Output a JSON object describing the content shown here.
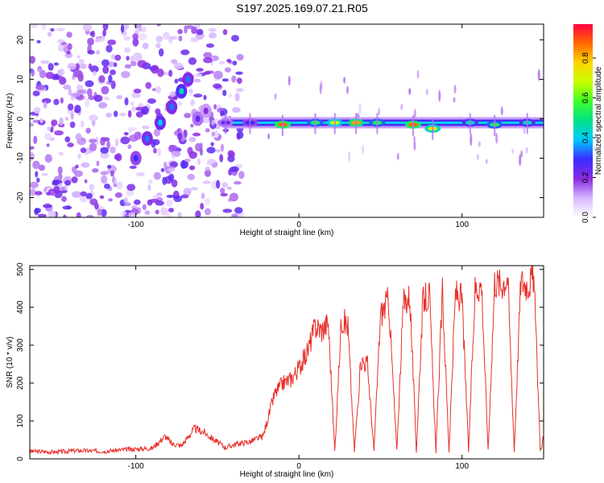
{
  "title": "S197.2025.169.07.21.R05",
  "colors": {
    "snr_line": "#e8302a",
    "axes": "#000000",
    "colorbar": [
      "#ffffff",
      "#d8b8ff",
      "#8a2be2",
      "#3b2bff",
      "#00c8ff",
      "#00e28a",
      "#3cff2a",
      "#c8ff00",
      "#ffd400",
      "#ff6a00",
      "#ff0040"
    ]
  },
  "chart_data": [
    {
      "type": "heatmap",
      "xlabel": "Height of straight line (km)",
      "ylabel": "Frequency (Hz)",
      "xlim": [
        -165,
        150
      ],
      "ylim": [
        -25,
        24
      ],
      "x_ticks": [
        -100,
        0,
        100
      ],
      "y_ticks": [
        -20,
        -10,
        0,
        10,
        20
      ],
      "colorbar": {
        "label": "Normalized spectral amplitude",
        "range": [
          0,
          0.97
        ],
        "ticks": [
          "0.0",
          "0.2",
          "0.4",
          "0.6",
          "0.8"
        ]
      },
      "ridge": [
        {
          "x": -45,
          "freq": -1,
          "amp": 0.25
        },
        {
          "x": -30,
          "freq": -1,
          "amp": 0.3
        },
        {
          "x": -10,
          "freq": -1.5,
          "amp": 0.9
        },
        {
          "x": 10,
          "freq": -1,
          "amp": 0.55
        },
        {
          "x": 22,
          "freq": -1,
          "amp": 0.7
        },
        {
          "x": 35,
          "freq": -1,
          "amp": 0.85
        },
        {
          "x": 48,
          "freq": -1,
          "amp": 0.55
        },
        {
          "x": 70,
          "freq": -1.5,
          "amp": 0.9
        },
        {
          "x": 82,
          "freq": -2.5,
          "amp": 0.75
        },
        {
          "x": 105,
          "freq": -1,
          "amp": 0.45
        },
        {
          "x": 120,
          "freq": -1.5,
          "amp": 0.55
        },
        {
          "x": 140,
          "freq": -1,
          "amp": 0.45
        }
      ],
      "arc": [
        {
          "x": -100,
          "freq": -10,
          "amp": 0.3
        },
        {
          "x": -93,
          "freq": -5,
          "amp": 0.35
        },
        {
          "x": -85,
          "freq": -1,
          "amp": 0.4
        },
        {
          "x": -78,
          "freq": 3,
          "amp": 0.35
        },
        {
          "x": -72,
          "freq": 7,
          "amp": 0.45
        },
        {
          "x": -68,
          "freq": 10,
          "amp": 0.35
        },
        {
          "x": -62,
          "freq": 0,
          "amp": 0.25
        },
        {
          "x": -57,
          "freq": 2,
          "amp": 0.2
        }
      ]
    },
    {
      "type": "line",
      "xlabel": "Height of straight line (km)",
      "ylabel": "SNR (10 * v/v)",
      "xlim": [
        -165,
        150
      ],
      "ylim": [
        0,
        510
      ],
      "x_ticks": [
        -100,
        0,
        100
      ],
      "y_ticks": [
        0,
        100,
        200,
        300,
        400,
        500
      ],
      "series": [
        {
          "x": [
            -165,
            -150,
            -135,
            -120,
            -105,
            -90,
            -82,
            -78,
            -72,
            -64,
            -58,
            -52,
            -45,
            -38,
            -30,
            -22,
            -15,
            -10,
            -5,
            0,
            5,
            10,
            14,
            18,
            22,
            26,
            30,
            34,
            38,
            42,
            46,
            50,
            55,
            60,
            64,
            68,
            72,
            76,
            80,
            84,
            88,
            92,
            96,
            100,
            104,
            108,
            112,
            116,
            120,
            124,
            128,
            132,
            136,
            140,
            144,
            148,
            150
          ],
          "y": [
            20,
            18,
            22,
            20,
            25,
            28,
            60,
            40,
            35,
            80,
            70,
            50,
            30,
            40,
            45,
            60,
            170,
            200,
            210,
            240,
            280,
            350,
            340,
            360,
            20,
            370,
            350,
            20,
            260,
            250,
            20,
            380,
            420,
            20,
            410,
            430,
            20,
            420,
            430,
            20,
            440,
            20,
            440,
            420,
            20,
            450,
            460,
            20,
            470,
            460,
            480,
            20,
            470,
            460,
            480,
            20,
            60
          ]
        }
      ]
    }
  ]
}
